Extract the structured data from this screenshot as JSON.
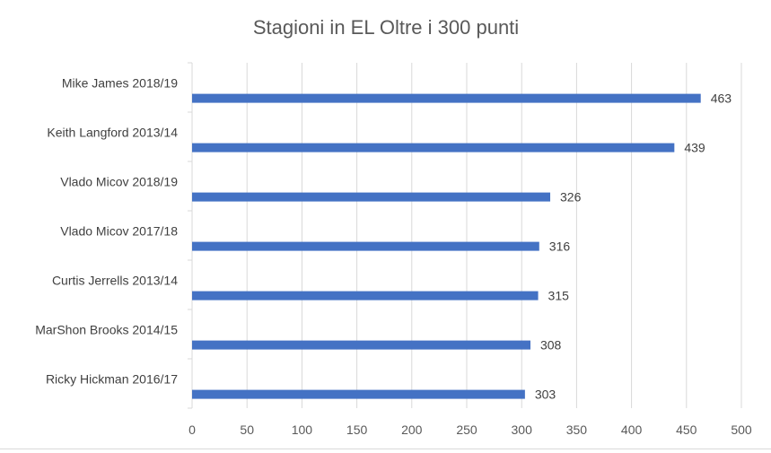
{
  "chart_data": {
    "type": "bar",
    "orientation": "horizontal",
    "title": "Stagioni in EL Oltre i 300 punti",
    "categories": [
      "Mike James 2018/19",
      "Keith Langford 2013/14",
      "Vlado Micov 2018/19",
      "Vlado Micov 2017/18",
      "Curtis Jerrells 2013/14",
      "MarShon Brooks 2014/15",
      "Ricky Hickman 2016/17"
    ],
    "values": [
      463,
      439,
      326,
      316,
      315,
      308,
      303
    ],
    "xlim": [
      0,
      500
    ],
    "xticks": [
      "0",
      "50",
      "100",
      "150",
      "200",
      "250",
      "300",
      "350",
      "400",
      "450",
      "500"
    ],
    "data_labels": true,
    "grid": "vertical",
    "legend": "none",
    "bar_color": "#4472c4"
  }
}
